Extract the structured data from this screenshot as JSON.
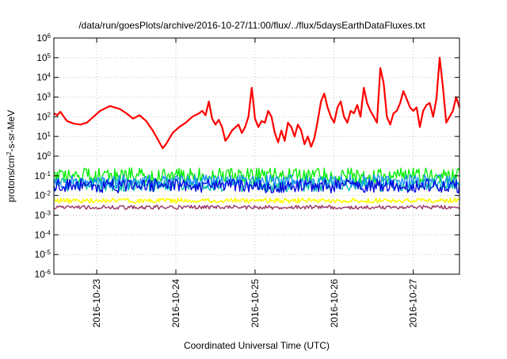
{
  "chart_data": {
    "type": "line",
    "title": "/data/run/goesPlots/archive/2016-10-27/11:00/flux/../flux/5daysEarthDataFluxes.txt",
    "xlabel": "Coordinated Universal Time (UTC)",
    "ylabel": {
      "pre": "protons/cm",
      "sup": "2",
      "post": "-s-sr-MeV"
    },
    "yscale": "log",
    "ylim": [
      1e-06,
      1000000.0
    ],
    "xlim": [
      "2016-10-22T11:00",
      "2016-10-27T14:00"
    ],
    "grid": true,
    "legend": "none",
    "y_ticks": [
      {
        "value": 1e-06,
        "base": "10",
        "exp": "-6"
      },
      {
        "value": 1e-05,
        "base": "10",
        "exp": "-5"
      },
      {
        "value": 0.0001,
        "base": "10",
        "exp": "-4"
      },
      {
        "value": 0.001,
        "base": "10",
        "exp": "-3"
      },
      {
        "value": 0.01,
        "base": "10",
        "exp": "-2"
      },
      {
        "value": 0.1,
        "base": "10",
        "exp": "-1"
      },
      {
        "value": 1,
        "base": "10",
        "exp": "0"
      },
      {
        "value": 10.0,
        "base": "10",
        "exp": "1"
      },
      {
        "value": 100.0,
        "base": "10",
        "exp": "2"
      },
      {
        "value": 1000.0,
        "base": "10",
        "exp": "3"
      },
      {
        "value": 10000.0,
        "base": "10",
        "exp": "4"
      },
      {
        "value": 100000.0,
        "base": "10",
        "exp": "5"
      },
      {
        "value": 1000000.0,
        "base": "10",
        "exp": "6"
      }
    ],
    "x_ticks": [
      {
        "time": "2016-10-23T00:00",
        "label": "2016-10-23"
      },
      {
        "time": "2016-10-24T00:00",
        "label": "2016-10-24"
      },
      {
        "time": "2016-10-25T00:00",
        "label": "2016-10-25"
      },
      {
        "time": "2016-10-26T00:00",
        "label": "2016-10-26"
      },
      {
        "time": "2016-10-27T00:00",
        "label": "2016-10-27"
      }
    ],
    "series": [
      {
        "color": "#ff0000",
        "stroke_width": 2.2,
        "points": [
          [
            "2016-10-22T11:00",
            150
          ],
          [
            "2016-10-22T12:00",
            120
          ],
          [
            "2016-10-22T13:00",
            180
          ],
          [
            "2016-10-22T14:00",
            100
          ],
          [
            "2016-10-22T15:00",
            60
          ],
          [
            "2016-10-22T17:00",
            45
          ],
          [
            "2016-10-22T19:00",
            40
          ],
          [
            "2016-10-22T21:00",
            50
          ],
          [
            "2016-10-22T23:00",
            100
          ],
          [
            "2016-10-23T01:00",
            200
          ],
          [
            "2016-10-23T04:00",
            350
          ],
          [
            "2016-10-23T07:00",
            250
          ],
          [
            "2016-10-23T09:00",
            150
          ],
          [
            "2016-10-23T11:00",
            80
          ],
          [
            "2016-10-23T13:00",
            120
          ],
          [
            "2016-10-23T15:00",
            60
          ],
          [
            "2016-10-23T17:00",
            20
          ],
          [
            "2016-10-23T19:00",
            5
          ],
          [
            "2016-10-23T20:00",
            2.5
          ],
          [
            "2016-10-23T21:00",
            4
          ],
          [
            "2016-10-23T23:00",
            15
          ],
          [
            "2016-10-24T01:00",
            30
          ],
          [
            "2016-10-24T03:00",
            50
          ],
          [
            "2016-10-24T05:00",
            100
          ],
          [
            "2016-10-24T07:00",
            150
          ],
          [
            "2016-10-24T08:00",
            200
          ],
          [
            "2016-10-24T09:00",
            120
          ],
          [
            "2016-10-24T10:00",
            600
          ],
          [
            "2016-10-24T11:00",
            80
          ],
          [
            "2016-10-24T12:00",
            40
          ],
          [
            "2016-10-24T13:00",
            70
          ],
          [
            "2016-10-24T14:00",
            30
          ],
          [
            "2016-10-24T15:00",
            6
          ],
          [
            "2016-10-24T16:00",
            10
          ],
          [
            "2016-10-24T17:00",
            20
          ],
          [
            "2016-10-24T19:00",
            40
          ],
          [
            "2016-10-24T20:00",
            15
          ],
          [
            "2016-10-24T21:00",
            30
          ],
          [
            "2016-10-24T22:00",
            100
          ],
          [
            "2016-10-24T23:00",
            3000
          ],
          [
            "2016-10-25T00:00",
            80
          ],
          [
            "2016-10-25T01:00",
            30
          ],
          [
            "2016-10-25T02:00",
            60
          ],
          [
            "2016-10-25T03:00",
            50
          ],
          [
            "2016-10-25T04:00",
            200
          ],
          [
            "2016-10-25T05:00",
            100
          ],
          [
            "2016-10-25T06:00",
            15
          ],
          [
            "2016-10-25T07:00",
            5
          ],
          [
            "2016-10-25T08:00",
            20
          ],
          [
            "2016-10-25T09:00",
            6
          ],
          [
            "2016-10-25T10:00",
            50
          ],
          [
            "2016-10-25T11:00",
            30
          ],
          [
            "2016-10-25T12:00",
            10
          ],
          [
            "2016-10-25T13:00",
            40
          ],
          [
            "2016-10-25T14:00",
            20
          ],
          [
            "2016-10-25T15:00",
            4
          ],
          [
            "2016-10-25T16:00",
            10
          ],
          [
            "2016-10-25T17:00",
            3
          ],
          [
            "2016-10-25T18:00",
            8
          ],
          [
            "2016-10-25T19:00",
            60
          ],
          [
            "2016-10-25T20:00",
            600
          ],
          [
            "2016-10-25T21:00",
            1500
          ],
          [
            "2016-10-25T22:00",
            300
          ],
          [
            "2016-10-25T23:00",
            100
          ],
          [
            "2016-10-26T00:00",
            50
          ],
          [
            "2016-10-26T01:00",
            300
          ],
          [
            "2016-10-26T02:00",
            600
          ],
          [
            "2016-10-26T03:00",
            100
          ],
          [
            "2016-10-26T04:00",
            50
          ],
          [
            "2016-10-26T05:00",
            200
          ],
          [
            "2016-10-26T06:00",
            150
          ],
          [
            "2016-10-26T07:00",
            400
          ],
          [
            "2016-10-26T08:00",
            100
          ],
          [
            "2016-10-26T09:00",
            3000
          ],
          [
            "2016-10-26T10:00",
            500
          ],
          [
            "2016-10-26T11:00",
            200
          ],
          [
            "2016-10-26T12:00",
            100
          ],
          [
            "2016-10-26T13:00",
            50
          ],
          [
            "2016-10-26T14:00",
            30000
          ],
          [
            "2016-10-26T15:00",
            5000
          ],
          [
            "2016-10-26T16:00",
            100
          ],
          [
            "2016-10-26T17:00",
            40
          ],
          [
            "2016-10-26T18:00",
            150
          ],
          [
            "2016-10-26T19:00",
            200
          ],
          [
            "2016-10-26T20:00",
            500
          ],
          [
            "2016-10-26T21:00",
            2000
          ],
          [
            "2016-10-26T22:00",
            800
          ],
          [
            "2016-10-26T23:00",
            300
          ],
          [
            "2016-10-27T00:00",
            200
          ],
          [
            "2016-10-27T01:00",
            300
          ],
          [
            "2016-10-27T02:00",
            30
          ],
          [
            "2016-10-27T03:00",
            200
          ],
          [
            "2016-10-27T04:00",
            400
          ],
          [
            "2016-10-27T05:00",
            500
          ],
          [
            "2016-10-27T06:00",
            100
          ],
          [
            "2016-10-27T07:00",
            800
          ],
          [
            "2016-10-27T08:00",
            100000
          ],
          [
            "2016-10-27T09:00",
            3000
          ],
          [
            "2016-10-27T10:00",
            50
          ],
          [
            "2016-10-27T11:00",
            100
          ],
          [
            "2016-10-27T12:00",
            200
          ],
          [
            "2016-10-27T13:00",
            1000
          ],
          [
            "2016-10-27T14:00",
            300
          ]
        ]
      },
      {
        "color": "#00ee00",
        "level": 0.1,
        "spread": 0.4,
        "seed": 1,
        "stroke_width": 1.3
      },
      {
        "color": "#00bbaa",
        "level": 0.035,
        "spread": 0.35,
        "seed": 2,
        "stroke_width": 1.3
      },
      {
        "color": "#1a8cff",
        "level": 0.05,
        "spread": 0.35,
        "seed": 3,
        "stroke_width": 1.3
      },
      {
        "color": "#0000dd",
        "level": 0.03,
        "spread": 0.35,
        "seed": 4,
        "stroke_width": 1.3
      },
      {
        "color": "#ffff00",
        "level": 0.0055,
        "spread": 0.12,
        "seed": 5,
        "stroke_width": 1.6
      },
      {
        "color": "#993366",
        "level": 0.0025,
        "spread": 0.1,
        "seed": 6,
        "stroke_width": 1.4
      }
    ]
  }
}
